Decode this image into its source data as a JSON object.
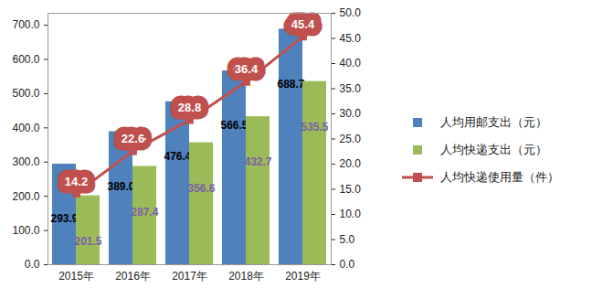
{
  "chart_data": {
    "type": "bar",
    "categories": [
      "2015年",
      "2016年",
      "2017年",
      "2018年",
      "2019年"
    ],
    "series": [
      {
        "name": "人均用邮支出（元）",
        "type": "bar",
        "color": "#4F81BD",
        "values": [
          293.9,
          389.0,
          476.4,
          566.5,
          688.7
        ],
        "value_labels": [
          "293.9",
          "389.0",
          "476.4",
          "566.5",
          "688.7"
        ]
      },
      {
        "name": "人均快递支出（元）",
        "type": "bar",
        "color": "#9BBB59",
        "values": [
          201.5,
          287.4,
          356.6,
          432.7,
          535.5
        ],
        "value_labels": [
          "201.5",
          "287.4",
          "356.6",
          "432.7",
          "535.5"
        ]
      },
      {
        "name": "人均快递使用量（件）",
        "type": "line",
        "axis": "y2",
        "color": "#C0504D",
        "marker": "square",
        "values": [
          14.2,
          22.6,
          28.8,
          36.4,
          45.4
        ],
        "value_labels": [
          "14.2",
          "22.6",
          "28.8",
          "36.4",
          "45.4"
        ]
      }
    ],
    "ylim": [
      0,
      735
    ],
    "yticks": [
      {
        "value": 0,
        "label": "0.0"
      },
      {
        "value": 100,
        "label": "100.0"
      },
      {
        "value": 200,
        "label": "200.0"
      },
      {
        "value": 300,
        "label": "300.0"
      },
      {
        "value": 400,
        "label": "400.0"
      },
      {
        "value": 500,
        "label": "500.0"
      },
      {
        "value": 600,
        "label": "600.0"
      },
      {
        "value": 700,
        "label": "700.0"
      }
    ],
    "y2lim": [
      0,
      50
    ],
    "y2ticks": [
      {
        "value": 0,
        "label": "0.0"
      },
      {
        "value": 5,
        "label": "5.0"
      },
      {
        "value": 10,
        "label": "10.0"
      },
      {
        "value": 15,
        "label": "15.0"
      },
      {
        "value": 20,
        "label": "20.0"
      },
      {
        "value": 25,
        "label": "25.0"
      },
      {
        "value": 30,
        "label": "30.0"
      },
      {
        "value": 35,
        "label": "35.0"
      },
      {
        "value": 40,
        "label": "40.0"
      },
      {
        "value": 45,
        "label": "45.0"
      },
      {
        "value": 50,
        "label": "50.0"
      }
    ],
    "data_labels": true,
    "legend": "right",
    "grid": false
  }
}
